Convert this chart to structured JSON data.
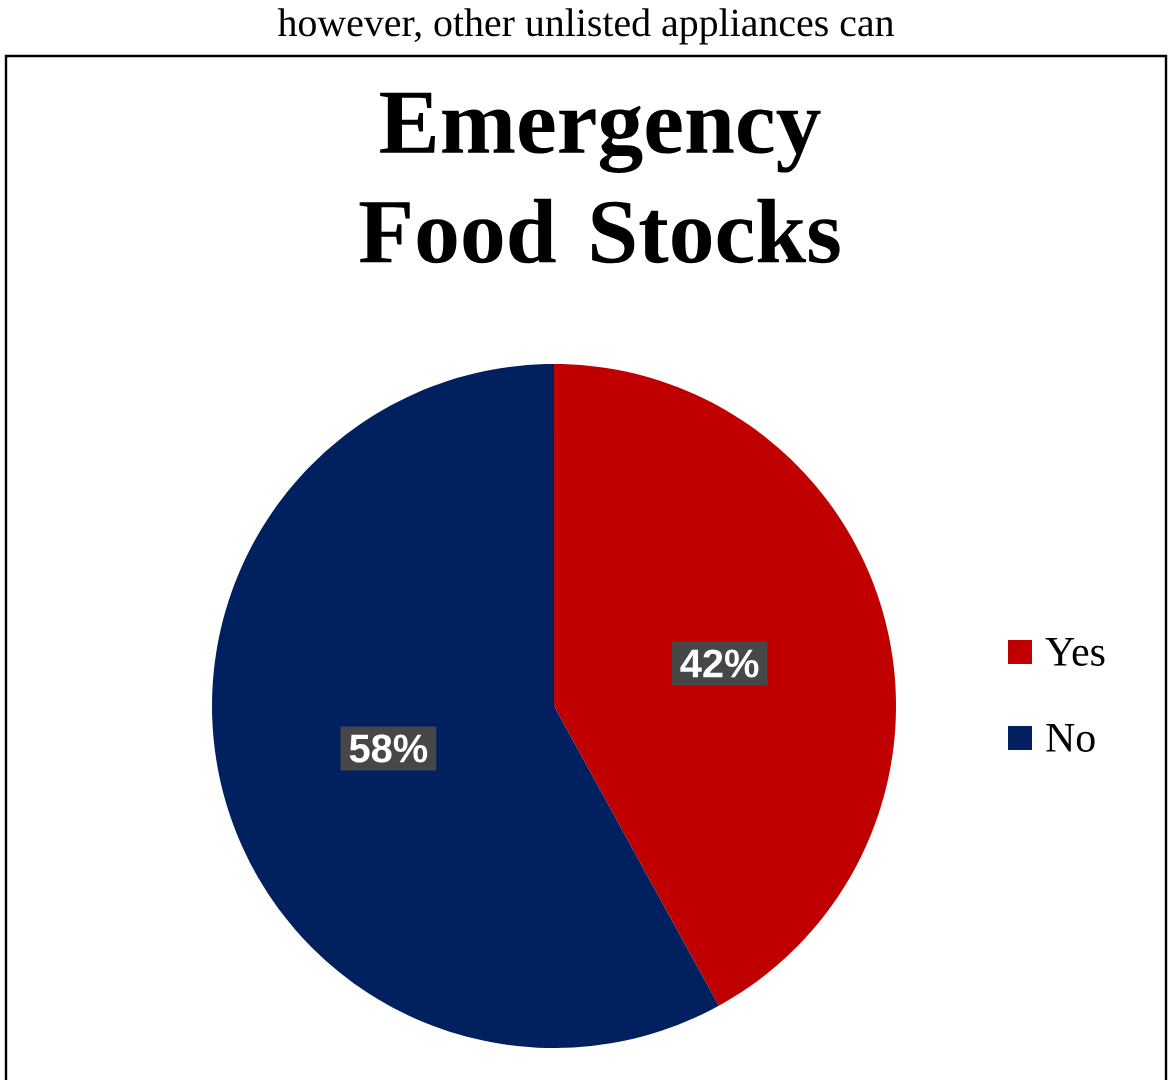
{
  "chart_data": {
    "type": "pie",
    "title": "Emergency Food Stocks",
    "categories": [
      "Yes",
      "No"
    ],
    "values": [
      42,
      58
    ],
    "colors": [
      "#c00000",
      "#002060"
    ],
    "value_labels": [
      "42%",
      "58%"
    ],
    "legend": "right",
    "annotations": [
      "however, other unlisted appliances can"
    ]
  }
}
